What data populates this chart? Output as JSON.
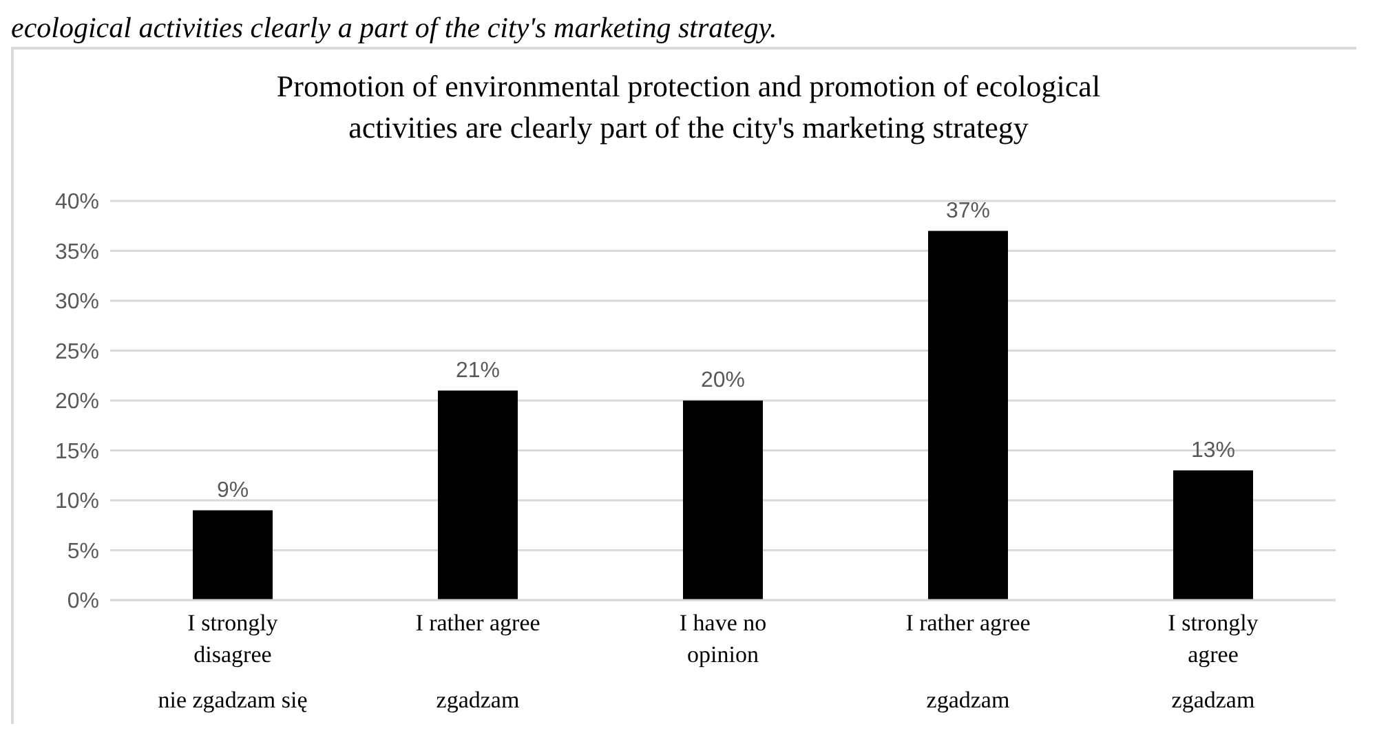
{
  "chart_data": {
    "type": "bar",
    "title": "Promotion of environmental protection and promotion of ecological activities are clearly part of the city's marketing strategy",
    "annotations": [
      "ecological activities clearly a part of the city's marketing strategy."
    ],
    "categories": [
      "I strongly disagree\nnie zgadzam się",
      "I rather agree\nzgadzam",
      "I have no opinion",
      "I rather agree\nzgadzam",
      "I strongly agree\nzgadzam"
    ],
    "values": [
      9,
      21,
      20,
      37,
      13
    ],
    "color": "#000000",
    "ylim": [
      0,
      40
    ],
    "yticks": [
      {
        "value": 0,
        "label": "0%"
      },
      {
        "value": 5,
        "label": "5%"
      },
      {
        "value": 10,
        "label": "10%"
      },
      {
        "value": 15,
        "label": "15%"
      },
      {
        "value": 20,
        "label": "20%"
      },
      {
        "value": 25,
        "label": "25%"
      },
      {
        "value": 30,
        "label": "30%"
      },
      {
        "value": 35,
        "label": "35%"
      },
      {
        "value": 40,
        "label": "40%"
      }
    ],
    "value_labels": [
      "9%",
      "21%",
      "20%",
      "37%",
      "13%"
    ],
    "grid": "y"
  }
}
